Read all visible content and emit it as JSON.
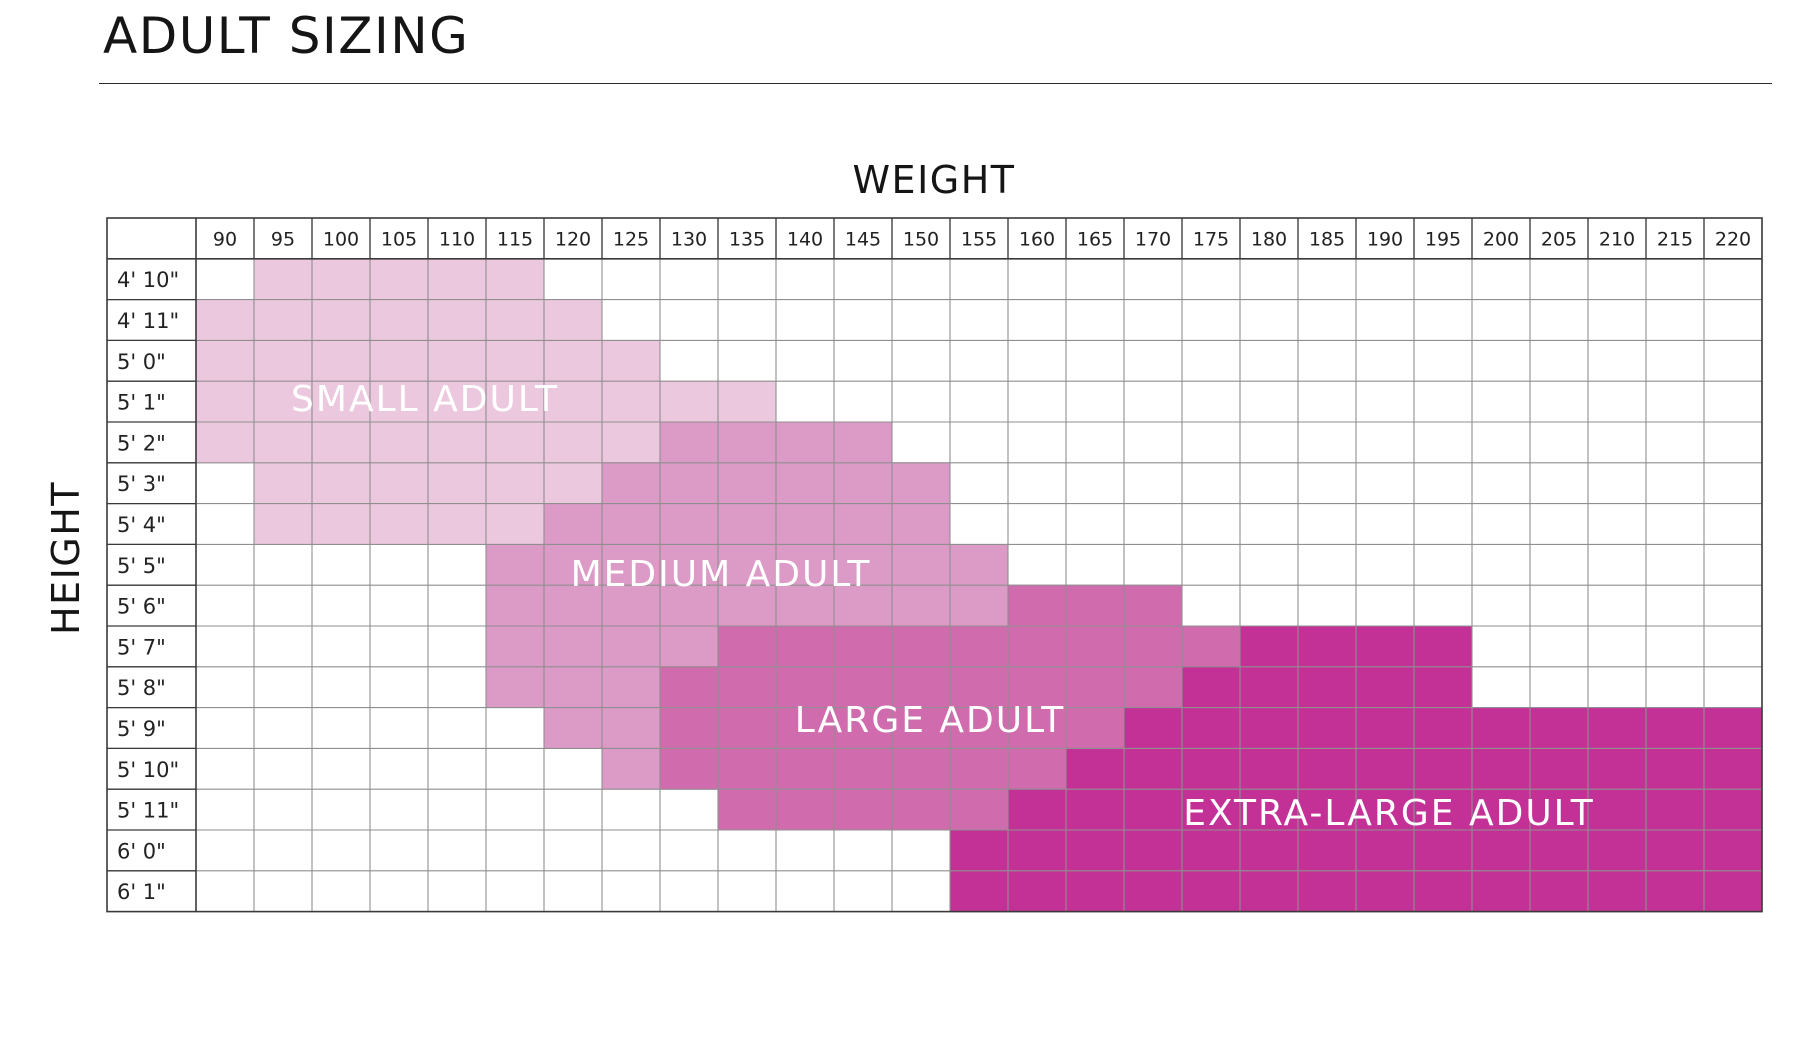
{
  "page": {
    "title": "ADULT SIZING"
  },
  "chart_data": {
    "type": "table",
    "title": "ADULT SIZING",
    "xlabel": "WEIGHT",
    "ylabel": "HEIGHT",
    "weights": [
      90,
      95,
      100,
      105,
      110,
      115,
      120,
      125,
      130,
      135,
      140,
      145,
      150,
      155,
      160,
      165,
      170,
      175,
      180,
      185,
      190,
      195,
      200,
      205,
      210,
      215,
      220
    ],
    "heights": [
      "4' 10\"",
      "4' 11\"",
      "5' 0\"",
      "5' 1\"",
      "5' 2\"",
      "5' 3\"",
      "5' 4\"",
      "5' 5\"",
      "5' 6\"",
      "5' 7\"",
      "5' 8\"",
      "5' 9\"",
      "5' 10\"",
      "5' 11\"",
      "6' 0\"",
      "6' 1\""
    ],
    "sizes": [
      {
        "name": "SMALL ADULT",
        "color": "#ecc8df",
        "ranges": [
          [
            95,
            115
          ],
          [
            90,
            120
          ],
          [
            90,
            125
          ],
          [
            90,
            135
          ],
          [
            90,
            125
          ],
          [
            95,
            120
          ],
          [
            95,
            115
          ]
        ]
      },
      {
        "name": "MEDIUM ADULT",
        "color": "#dc9ac6",
        "ranges": [
          null,
          null,
          null,
          null,
          [
            130,
            145
          ],
          [
            125,
            150
          ],
          [
            120,
            150
          ],
          [
            115,
            155
          ],
          [
            115,
            155
          ],
          [
            115,
            130
          ],
          [
            115,
            125
          ],
          [
            120,
            125
          ],
          [
            125,
            125
          ]
        ]
      },
      {
        "name": "LARGE ADULT",
        "color": "#d06bad",
        "ranges": [
          null,
          null,
          null,
          null,
          null,
          null,
          null,
          null,
          [
            160,
            170
          ],
          [
            135,
            175
          ],
          [
            130,
            170
          ],
          [
            130,
            165
          ],
          [
            130,
            160
          ],
          [
            135,
            155
          ]
        ]
      },
      {
        "name": "EXTRA-LARGE ADULT",
        "color": "#c43196",
        "ranges": [
          null,
          null,
          null,
          null,
          null,
          null,
          null,
          null,
          null,
          [
            180,
            195
          ],
          [
            175,
            195
          ],
          [
            170,
            220
          ],
          [
            165,
            220
          ],
          [
            160,
            220
          ],
          [
            155,
            220
          ],
          [
            155,
            220
          ]
        ]
      }
    ],
    "grid": true
  }
}
